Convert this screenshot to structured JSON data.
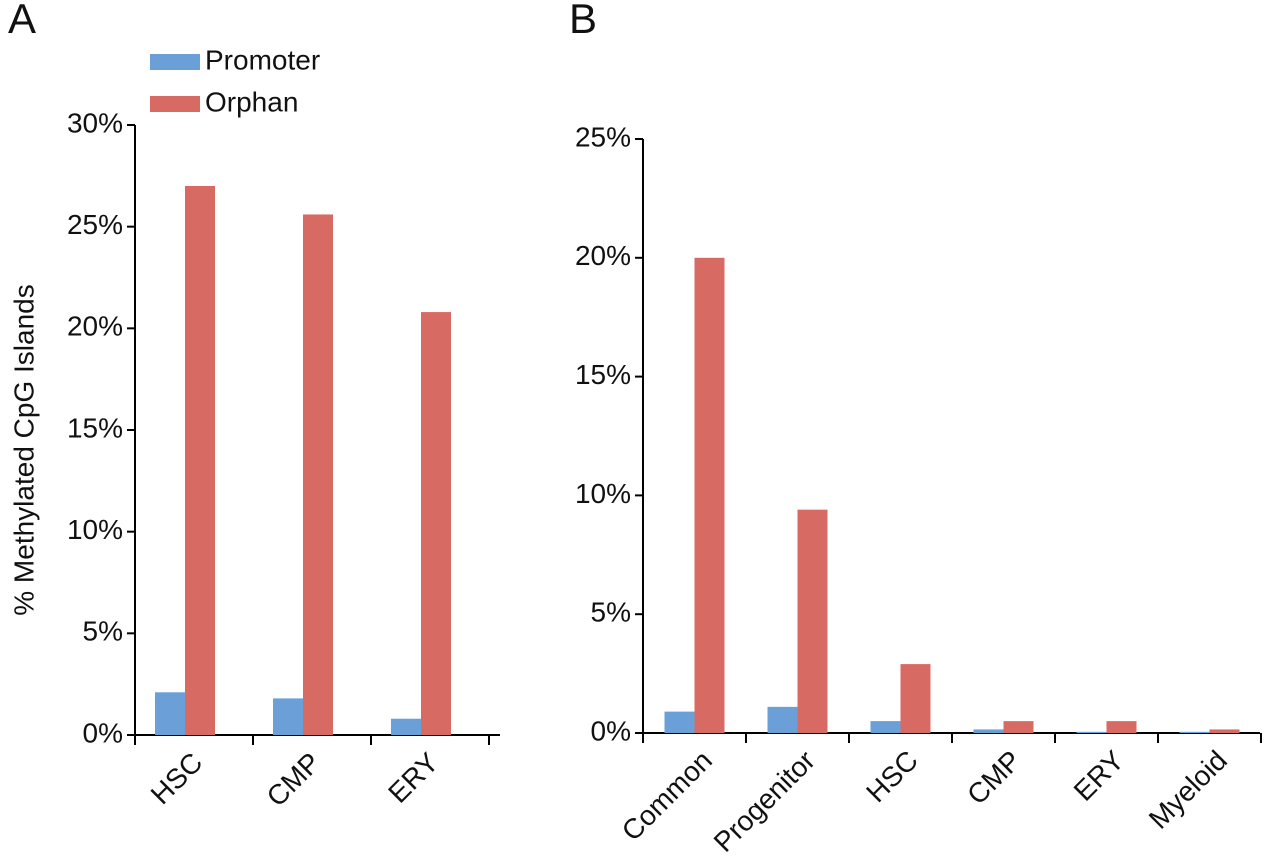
{
  "chart_data": [
    {
      "type": "bar",
      "panel": "A",
      "ylabel": "% Methylated CpG Islands",
      "categories": [
        "HSC",
        "CMP",
        "ERY"
      ],
      "series": [
        {
          "name": "Promoter",
          "color": "#6a9fd8",
          "values": [
            2.1,
            1.8,
            0.8
          ]
        },
        {
          "name": "Orphan",
          "color": "#d86a64",
          "values": [
            27,
            25.6,
            20.8
          ]
        }
      ],
      "ylim": [
        0,
        30
      ],
      "yticks": [
        {
          "value": 0,
          "label": "0%"
        },
        {
          "value": 5,
          "label": "5%"
        },
        {
          "value": 10,
          "label": "10%"
        },
        {
          "value": 15,
          "label": "15%"
        },
        {
          "value": 20,
          "label": "20%"
        },
        {
          "value": 25,
          "label": "25%"
        },
        {
          "value": 30,
          "label": "30%"
        }
      ],
      "legend": "top-left"
    },
    {
      "type": "bar",
      "panel": "B",
      "categories": [
        "Common",
        "Progenitor",
        "HSC",
        "CMP",
        "ERY",
        "Myeloid"
      ],
      "series": [
        {
          "color": "#6a9fd8",
          "values": [
            0.9,
            1.1,
            0.5,
            0.15,
            0.05,
            0.05
          ]
        },
        {
          "color": "#d86a64",
          "values": [
            20,
            9.4,
            2.9,
            0.5,
            0.5,
            0.15
          ]
        }
      ],
      "ylim": [
        0,
        25
      ],
      "yticks": [
        {
          "value": 0,
          "label": "0%"
        },
        {
          "value": 5,
          "label": "5%"
        },
        {
          "value": 10,
          "label": "10%"
        },
        {
          "value": 15,
          "label": "15%"
        },
        {
          "value": 20,
          "label": "20%"
        },
        {
          "value": 25,
          "label": "25%"
        }
      ]
    }
  ]
}
